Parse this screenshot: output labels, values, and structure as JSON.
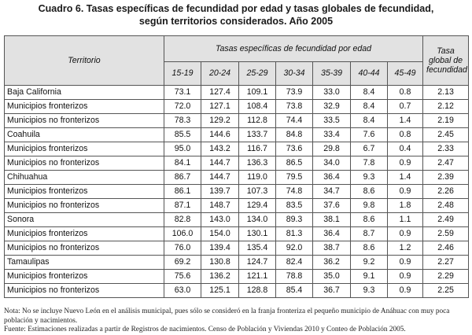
{
  "title_line1": "Cuadro 6. Tasas específicas de fecundidad por edad y tasas globales de fecundidad,",
  "title_line2": "según territorios considerados. Año 2005",
  "table": {
    "territorio_header": "Territorio",
    "group_header": "Tasas específicas de fecundidad por edad",
    "tgf_header": "Tasa global de fecundidad",
    "age_groups": [
      "15-19",
      "20-24",
      "25-29",
      "30-34",
      "35-39",
      "40-44",
      "45-49"
    ],
    "rows": [
      {
        "territorio": "Baja California",
        "values": [
          "73.1",
          "127.4",
          "109.1",
          "73.9",
          "33.0",
          "8.4",
          "0.8"
        ],
        "tgf": "2.13"
      },
      {
        "territorio": "Municipios fronterizos",
        "values": [
          "72.0",
          "127.1",
          "108.4",
          "73.8",
          "32.9",
          "8.4",
          "0.7"
        ],
        "tgf": "2.12"
      },
      {
        "territorio": "Municipios no fronterizos",
        "values": [
          "78.3",
          "129.2",
          "112.8",
          "74.4",
          "33.5",
          "8.4",
          "1.4"
        ],
        "tgf": "2.19"
      },
      {
        "territorio": "Coahuila",
        "values": [
          "85.5",
          "144.6",
          "133.7",
          "84.8",
          "33.4",
          "7.6",
          "0.8"
        ],
        "tgf": "2.45"
      },
      {
        "territorio": "Municipios fronterizos",
        "values": [
          "95.0",
          "143.2",
          "116.7",
          "73.6",
          "29.8",
          "6.7",
          "0.4"
        ],
        "tgf": "2.33"
      },
      {
        "territorio": "Municipios no fronterizos",
        "values": [
          "84.1",
          "144.7",
          "136.3",
          "86.5",
          "34.0",
          "7.8",
          "0.9"
        ],
        "tgf": "2.47"
      },
      {
        "territorio": "Chihuahua",
        "values": [
          "86.7",
          "144.7",
          "119.0",
          "79.5",
          "36.4",
          "9.3",
          "1.4"
        ],
        "tgf": "2.39"
      },
      {
        "territorio": "Municipios fronterizos",
        "values": [
          "86.1",
          "139.7",
          "107.3",
          "74.8",
          "34.7",
          "8.6",
          "0.9"
        ],
        "tgf": "2.26"
      },
      {
        "territorio": "Municipios no fronterizos",
        "values": [
          "87.1",
          "148.7",
          "129.4",
          "83.5",
          "37.6",
          "9.8",
          "1.8"
        ],
        "tgf": "2.48"
      },
      {
        "territorio": "Sonora",
        "values": [
          "82.8",
          "143.0",
          "134.0",
          "89.3",
          "38.1",
          "8.6",
          "1.1"
        ],
        "tgf": "2.49"
      },
      {
        "territorio": "Municipios fronterizos",
        "values": [
          "106.0",
          "154.0",
          "130.1",
          "81.3",
          "36.4",
          "8.7",
          "0.9"
        ],
        "tgf": "2.59"
      },
      {
        "territorio": "Municipios no fronterizos",
        "values": [
          "76.0",
          "139.4",
          "135.4",
          "92.0",
          "38.7",
          "8.6",
          "1.2"
        ],
        "tgf": "2.46"
      },
      {
        "territorio": "Tamaulipas",
        "values": [
          "69.2",
          "130.8",
          "124.7",
          "82.4",
          "36.2",
          "9.2",
          "0.9"
        ],
        "tgf": "2.27"
      },
      {
        "territorio": "Municipios fronterizos",
        "values": [
          "75.6",
          "136.2",
          "121.1",
          "78.8",
          "35.0",
          "9.1",
          "0.9"
        ],
        "tgf": "2.29"
      },
      {
        "territorio": "Municipios no fronterizos",
        "values": [
          "63.0",
          "125.1",
          "128.8",
          "85.4",
          "36.7",
          "9.3",
          "0.9"
        ],
        "tgf": "2.25"
      }
    ]
  },
  "note": "Nota: No se incluye Nuevo León en el análisis municipal, pues sólo se consideró en la franja fronteriza el pequeño municipio de Anáhuac con muy poca población y nacimientos.",
  "source": "Fuente: Estimaciones realizadas a partir de Registros de nacimientos. Censo de Población y Viviendas 2010 y Conteo de Población 2005.",
  "colors": {
    "header_bg": "#e2e2e2",
    "border": "#555555"
  }
}
